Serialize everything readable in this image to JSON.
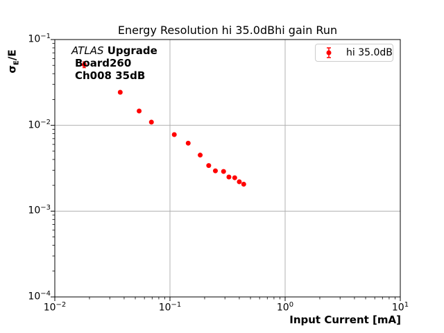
{
  "window": {
    "background": "#ffffff"
  },
  "chart_data": {
    "type": "scatter",
    "title": "Energy Resolution hi 35.0dBhi gain Run",
    "xlabel": "Input Current [mA]",
    "ylabel": "σE/E",
    "ylabel_sigma": "σ",
    "ylabel_sub": "E",
    "ylabel_rest": "/E",
    "x_scale": "log",
    "y_scale": "log",
    "xlim": [
      0.01,
      10
    ],
    "ylim": [
      0.0001,
      0.1
    ],
    "x_tick_exponents": [
      -2,
      -1,
      0,
      1
    ],
    "y_tick_exponents": [
      -1,
      -2,
      -3,
      -4
    ],
    "grid": true,
    "grid_color": "#b0b0b0",
    "axis_color": "#000000",
    "legend": {
      "label": "hi 35.0dB",
      "position": "upper right",
      "marker": "errorbar-dot",
      "marker_color": "#ff0000"
    },
    "annotation": {
      "line1_italic": "ATLAS",
      "line1_bold": " Upgrade",
      "line2": "Board260",
      "line3": "Ch008 35dB"
    },
    "series": [
      {
        "name": "hi 35.0dB",
        "color": "#ff0000",
        "marker_radius": 3.5,
        "points": [
          {
            "x": 0.018,
            "y": 0.051,
            "yerr": 0.004
          },
          {
            "x": 0.037,
            "y": 0.0243,
            "yerr": 0.0008
          },
          {
            "x": 0.054,
            "y": 0.0147,
            "yerr": 0.0004
          },
          {
            "x": 0.069,
            "y": 0.0109,
            "yerr": 0.0003
          },
          {
            "x": 0.109,
            "y": 0.0078,
            "yerr": 0.0002
          },
          {
            "x": 0.144,
            "y": 0.0062,
            "yerr": 0.00015
          },
          {
            "x": 0.183,
            "y": 0.0045,
            "yerr": 0.0001
          },
          {
            "x": 0.217,
            "y": 0.0034,
            "yerr": 8e-05
          },
          {
            "x": 0.248,
            "y": 0.00295,
            "yerr": 7e-05
          },
          {
            "x": 0.292,
            "y": 0.0029,
            "yerr": 7e-05
          },
          {
            "x": 0.325,
            "y": 0.0025,
            "yerr": 6e-05
          },
          {
            "x": 0.365,
            "y": 0.00245,
            "yerr": 6e-05
          },
          {
            "x": 0.4,
            "y": 0.0022,
            "yerr": 5e-05
          },
          {
            "x": 0.437,
            "y": 0.00206,
            "yerr": 5e-05
          }
        ]
      }
    ]
  }
}
